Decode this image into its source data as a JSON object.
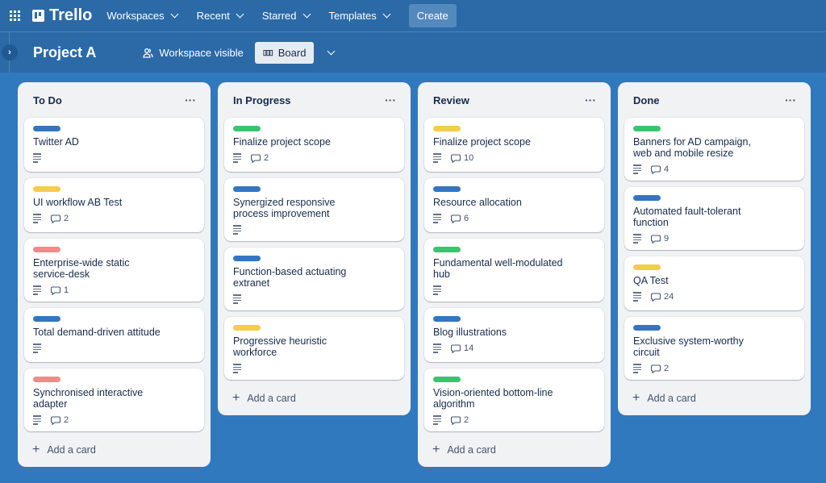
{
  "topbar": {
    "logo": "Trello",
    "nav": [
      {
        "label": "Workspaces"
      },
      {
        "label": "Recent"
      },
      {
        "label": "Starred"
      },
      {
        "label": "Templates"
      }
    ],
    "create_label": "Create"
  },
  "board": {
    "title": "Project A",
    "visibility": "Workspace visible",
    "view_label": "Board"
  },
  "colors": {
    "blue": "#3575c0",
    "yellow": "#f5cd47",
    "red": "#f08b87",
    "green": "#35c66e"
  },
  "add_card_label": "Add a card",
  "lists": [
    {
      "name": "To Do",
      "cards": [
        {
          "title": "Twitter AD",
          "label": "blue",
          "comments": null
        },
        {
          "title": "UI workflow AB Test",
          "label": "yellow",
          "comments": "2"
        },
        {
          "title": "Enterprise-wide static service-desk",
          "label": "red",
          "comments": "1"
        },
        {
          "title": "Total demand-driven attitude",
          "label": "blue",
          "comments": null
        },
        {
          "title": "Synchronised interactive adapter",
          "label": "red",
          "comments": "2"
        }
      ]
    },
    {
      "name": "In Progress",
      "cards": [
        {
          "title": "Finalize project scope",
          "label": "green",
          "comments": "2"
        },
        {
          "title": "Synergized responsive process improvement",
          "label": "blue",
          "comments": null
        },
        {
          "title": "Function-based actuating extranet",
          "label": "blue",
          "comments": null
        },
        {
          "title": "Progressive heuristic workforce",
          "label": "yellow",
          "comments": null
        }
      ]
    },
    {
      "name": "Review",
      "cards": [
        {
          "title": "Finalize project scope",
          "label": "yellow",
          "comments": "10"
        },
        {
          "title": "Resource allocation",
          "label": "blue",
          "comments": "6"
        },
        {
          "title": "Fundamental well-modulated hub",
          "label": "green",
          "comments": null
        },
        {
          "title": "Blog illustrations",
          "label": "blue",
          "comments": "14"
        },
        {
          "title": "Vision-oriented bottom-line algorithm",
          "label": "green",
          "comments": "2"
        }
      ]
    },
    {
      "name": "Done",
      "cards": [
        {
          "title": "Banners for AD campaign, web and mobile resize",
          "label": "green",
          "comments": "4"
        },
        {
          "title": "Automated fault-tolerant function",
          "label": "blue",
          "comments": "9"
        },
        {
          "title": "QA Test",
          "label": "yellow",
          "comments": "24"
        },
        {
          "title": "Exclusive system-worthy circuit",
          "label": "blue",
          "comments": "2"
        }
      ]
    }
  ]
}
